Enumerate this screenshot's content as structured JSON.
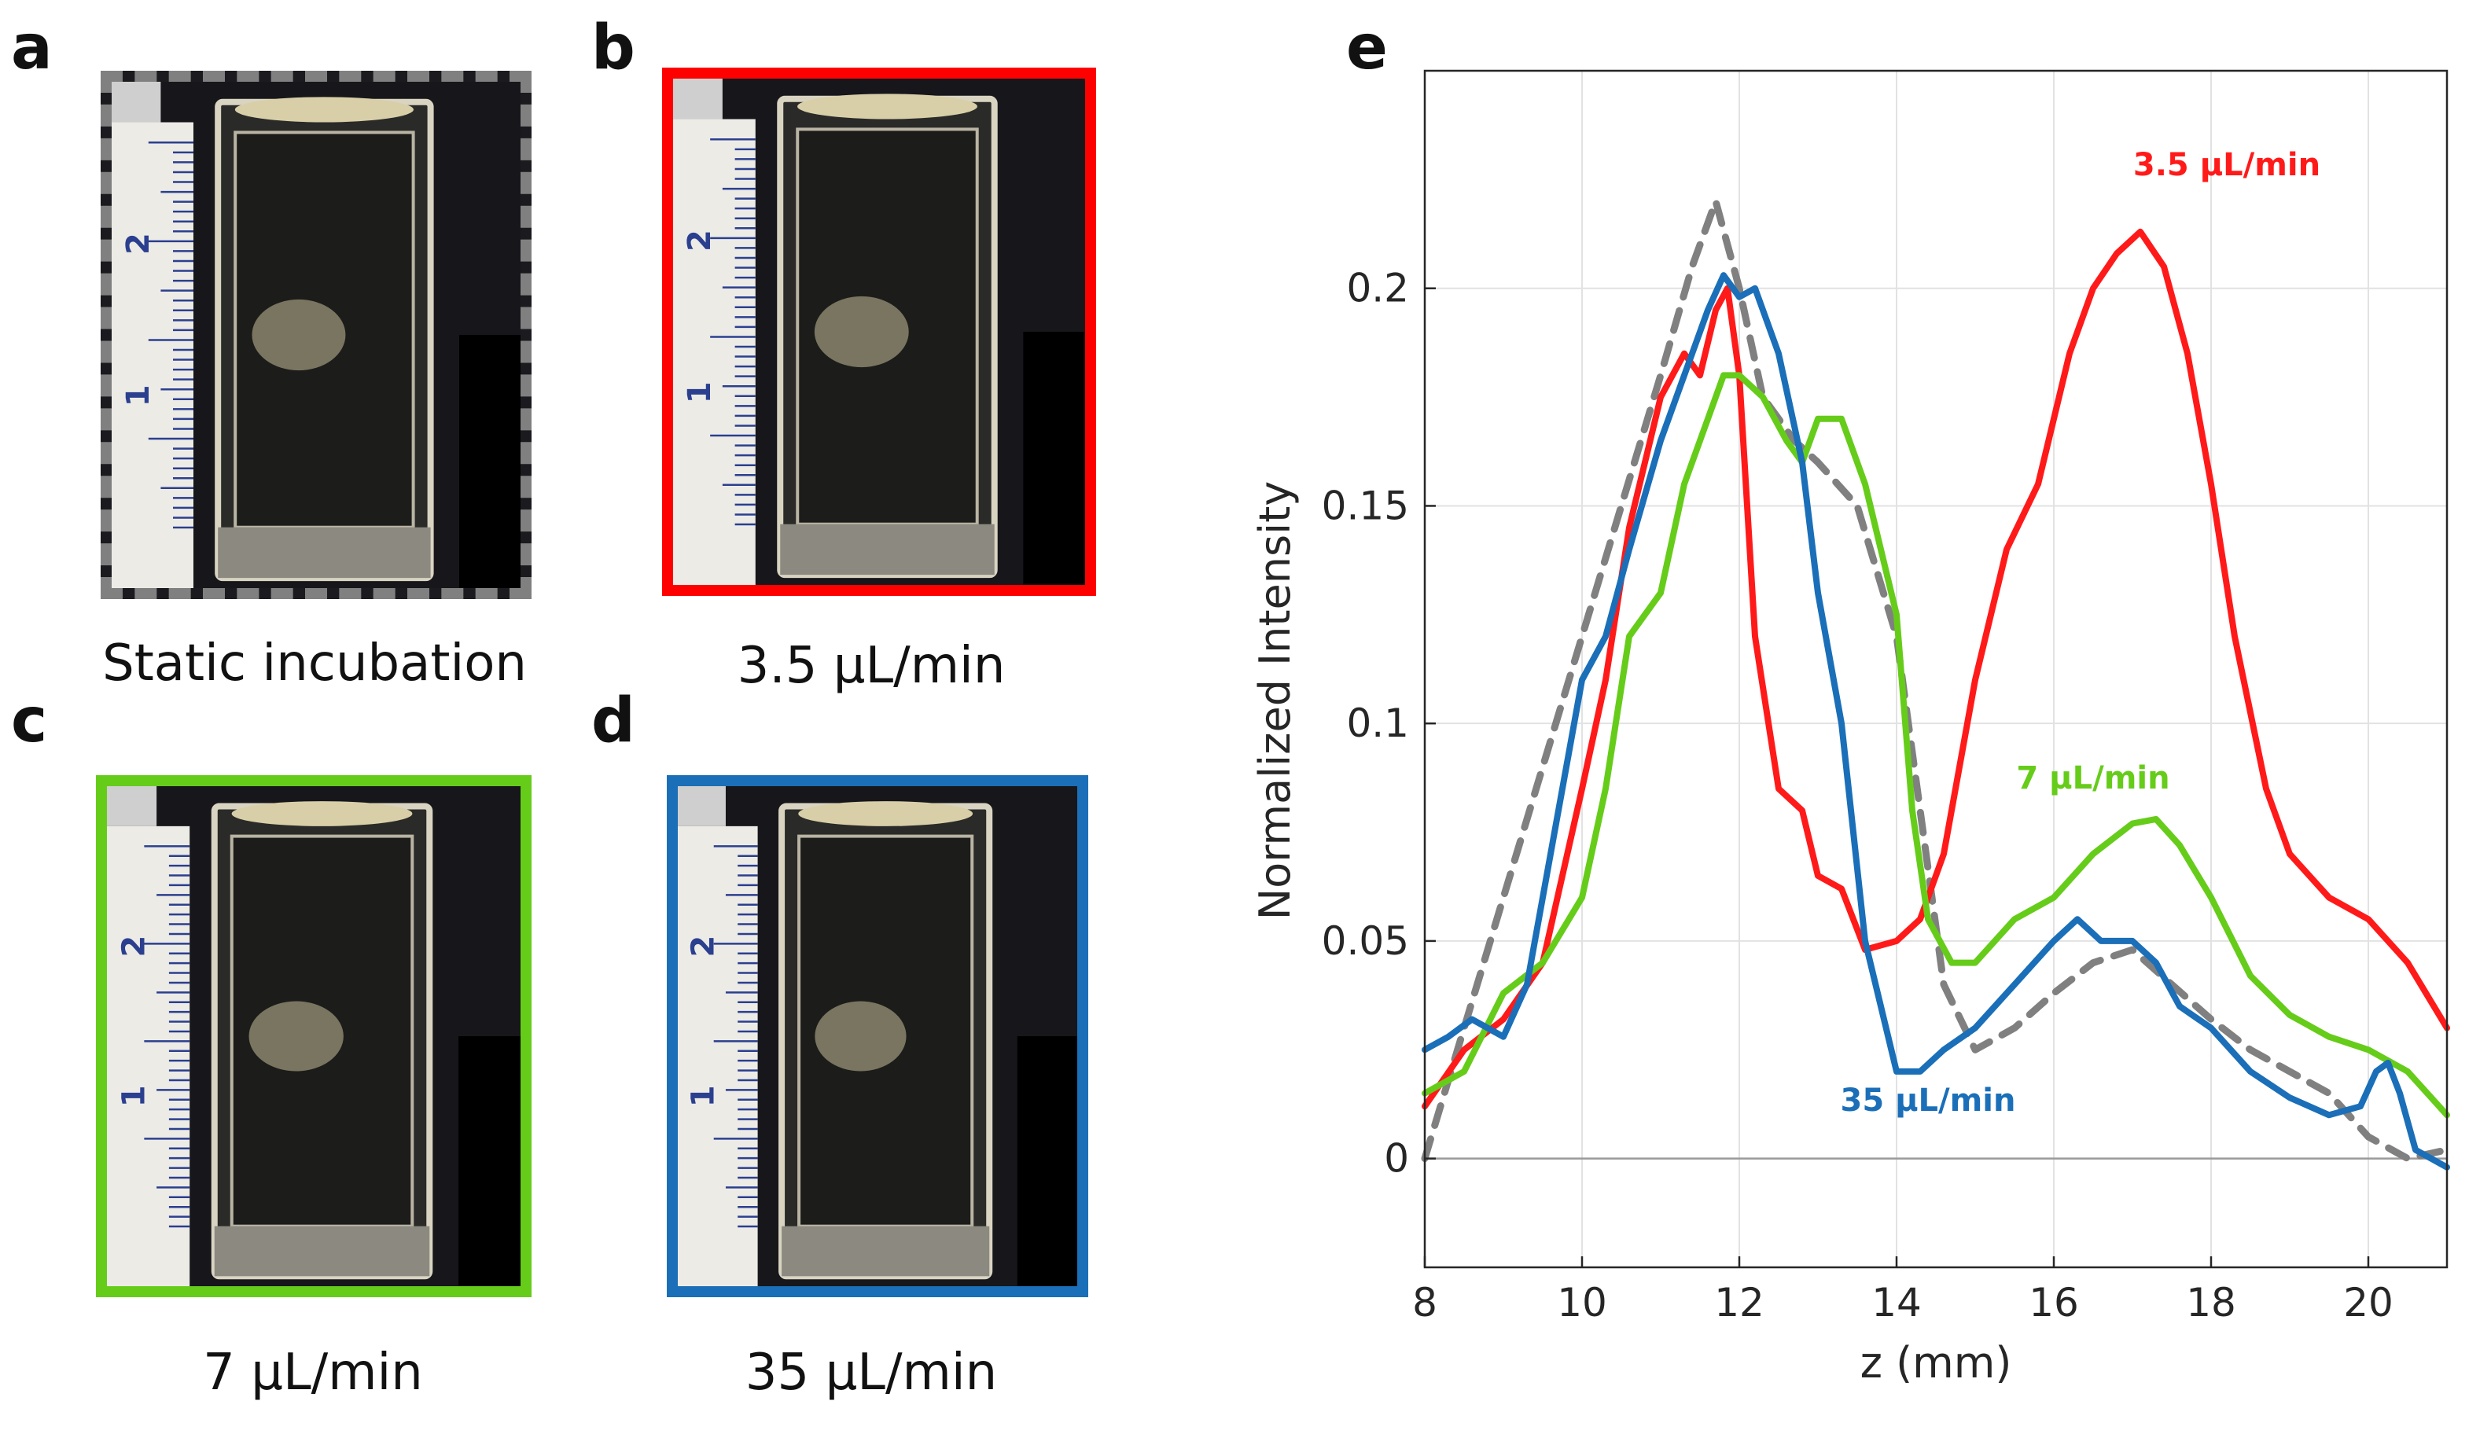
{
  "panels": {
    "a": {
      "label": "a",
      "caption": "Static incubation",
      "frame_color": "#808080",
      "frame_style": "dashed"
    },
    "b": {
      "label": "b",
      "caption": "3.5 μL/min",
      "frame_color": "#ff0000",
      "frame_style": "solid"
    },
    "c": {
      "label": "c",
      "caption": "7 μL/min",
      "frame_color": "#66cc1a",
      "frame_style": "solid"
    },
    "d": {
      "label": "d",
      "caption": "35 μL/min",
      "frame_color": "#1a6fb8",
      "frame_style": "solid"
    },
    "e": {
      "label": "e"
    }
  },
  "ruler": {
    "mark_1": "1",
    "mark_2": "2"
  },
  "chart_data": {
    "type": "line",
    "title": "",
    "xlabel": "z (mm)",
    "ylabel": "Normalized Intensity",
    "xlim": [
      8,
      21
    ],
    "ylim": [
      -0.025,
      0.25
    ],
    "xticks": [
      8,
      10,
      12,
      14,
      16,
      18,
      20
    ],
    "yticks": [
      0,
      0.05,
      0.1,
      0.15,
      0.2
    ],
    "ytick_labels": [
      "0",
      "0.05",
      "0.1",
      "0.15",
      "0.2"
    ],
    "grid": true,
    "series": [
      {
        "name": "Static incubation",
        "color": "#808080",
        "dash": "dashed",
        "show_label": false,
        "x": [
          8.0,
          8.5,
          9.0,
          9.5,
          10.0,
          10.5,
          11.0,
          11.4,
          11.7,
          12.0,
          12.3,
          12.7,
          13.0,
          13.5,
          14.0,
          14.3,
          14.6,
          15.0,
          15.5,
          16.0,
          16.5,
          17.0,
          17.5,
          18.0,
          18.5,
          19.0,
          19.5,
          20.0,
          20.5,
          21.0
        ],
        "y": [
          0.0,
          0.03,
          0.06,
          0.09,
          0.12,
          0.15,
          0.18,
          0.205,
          0.22,
          0.2,
          0.175,
          0.165,
          0.16,
          0.15,
          0.12,
          0.08,
          0.04,
          0.025,
          0.03,
          0.038,
          0.045,
          0.048,
          0.04,
          0.032,
          0.025,
          0.02,
          0.015,
          0.005,
          0.0,
          0.002
        ]
      },
      {
        "name": "3.5 μL/min",
        "color": "#ff1a1a",
        "dash": "solid",
        "show_label": true,
        "label_x": 18.2,
        "label_y": 0.226,
        "x": [
          8.0,
          8.5,
          9.0,
          9.5,
          10.0,
          10.3,
          10.6,
          11.0,
          11.3,
          11.5,
          11.7,
          11.85,
          12.0,
          12.2,
          12.5,
          12.8,
          13.0,
          13.3,
          13.6,
          14.0,
          14.3,
          14.6,
          15.0,
          15.4,
          15.8,
          16.2,
          16.5,
          16.8,
          17.1,
          17.4,
          17.7,
          18.0,
          18.3,
          18.7,
          19.0,
          19.5,
          20.0,
          20.5,
          21.0
        ],
        "y": [
          0.012,
          0.025,
          0.032,
          0.045,
          0.085,
          0.11,
          0.145,
          0.175,
          0.185,
          0.18,
          0.195,
          0.2,
          0.18,
          0.12,
          0.085,
          0.08,
          0.065,
          0.062,
          0.048,
          0.05,
          0.055,
          0.07,
          0.11,
          0.14,
          0.155,
          0.185,
          0.2,
          0.208,
          0.213,
          0.205,
          0.185,
          0.155,
          0.12,
          0.085,
          0.07,
          0.06,
          0.055,
          0.045,
          0.03
        ]
      },
      {
        "name": "7 μL/min",
        "color": "#66cc1a",
        "dash": "solid",
        "show_label": true,
        "label_x": 16.5,
        "label_y": 0.085,
        "x": [
          8.0,
          8.5,
          9.0,
          9.5,
          10.0,
          10.3,
          10.6,
          11.0,
          11.3,
          11.6,
          11.8,
          12.0,
          12.3,
          12.6,
          12.8,
          13.0,
          13.3,
          13.6,
          14.0,
          14.2,
          14.4,
          14.7,
          15.0,
          15.5,
          16.0,
          16.5,
          17.0,
          17.3,
          17.6,
          18.0,
          18.5,
          19.0,
          19.5,
          20.0,
          20.5,
          21.0
        ],
        "y": [
          0.015,
          0.02,
          0.038,
          0.045,
          0.06,
          0.085,
          0.12,
          0.13,
          0.155,
          0.17,
          0.18,
          0.18,
          0.175,
          0.165,
          0.16,
          0.17,
          0.17,
          0.155,
          0.125,
          0.08,
          0.055,
          0.045,
          0.045,
          0.055,
          0.06,
          0.07,
          0.077,
          0.078,
          0.072,
          0.06,
          0.042,
          0.033,
          0.028,
          0.025,
          0.02,
          0.01
        ]
      },
      {
        "name": "35 μL/min",
        "color": "#1a6fb8",
        "dash": "solid",
        "show_label": true,
        "label_x": 14.4,
        "label_y": 0.011,
        "x": [
          8.0,
          8.3,
          8.6,
          9.0,
          9.3,
          9.6,
          10.0,
          10.3,
          10.6,
          11.0,
          11.3,
          11.6,
          11.8,
          12.0,
          12.2,
          12.5,
          12.8,
          13.0,
          13.3,
          13.6,
          14.0,
          14.3,
          14.6,
          15.0,
          15.5,
          16.0,
          16.3,
          16.6,
          17.0,
          17.3,
          17.6,
          18.0,
          18.5,
          19.0,
          19.5,
          19.9,
          20.1,
          20.25,
          20.4,
          20.6,
          21.0
        ],
        "y": [
          0.025,
          0.028,
          0.032,
          0.028,
          0.04,
          0.07,
          0.11,
          0.12,
          0.14,
          0.165,
          0.18,
          0.195,
          0.203,
          0.198,
          0.2,
          0.185,
          0.16,
          0.13,
          0.1,
          0.05,
          0.02,
          0.02,
          0.025,
          0.03,
          0.04,
          0.05,
          0.055,
          0.05,
          0.05,
          0.045,
          0.035,
          0.03,
          0.02,
          0.014,
          0.01,
          0.012,
          0.02,
          0.022,
          0.015,
          0.002,
          -0.002
        ]
      }
    ]
  }
}
